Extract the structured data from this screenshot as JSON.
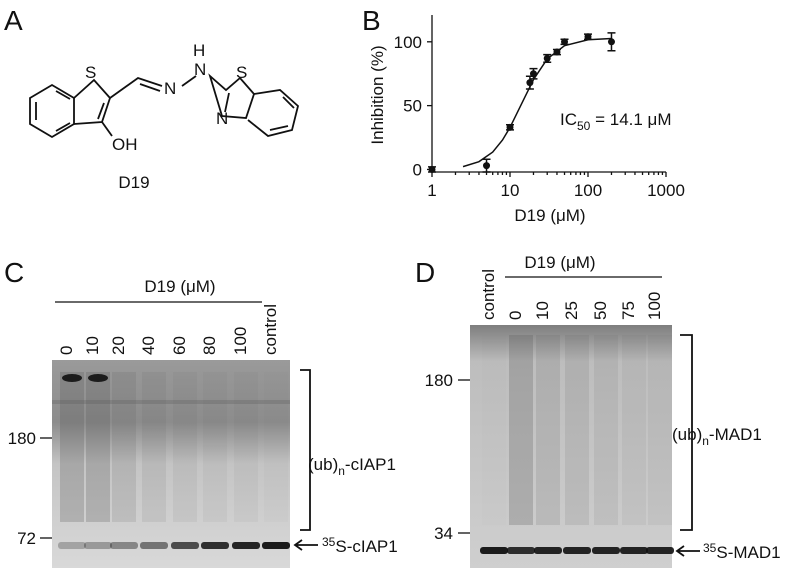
{
  "panels": {
    "a": "A",
    "b": "B",
    "c": "C",
    "d": "D"
  },
  "structure": {
    "atoms": [
      "S",
      "N",
      "N",
      "H",
      "S",
      "N",
      "OH"
    ],
    "name": "D19"
  },
  "chart_data": {
    "type": "scatter",
    "xscale": "log",
    "xlabel": "D19 (μM)",
    "ylabel": "Inhibition (%)",
    "annotation": [
      "IC",
      "50",
      " = 14.1 μM"
    ],
    "xlim": [
      1,
      1000
    ],
    "xticks": [
      1,
      10,
      100,
      1000
    ],
    "ylim": [
      -2,
      121
    ],
    "yticks": [
      0,
      50,
      100
    ],
    "color": "#111111",
    "series": [
      {
        "x": [
          1,
          5,
          10,
          18,
          20,
          30,
          40,
          50,
          100,
          200
        ],
        "values": [
          0,
          3,
          33,
          68,
          75,
          87,
          92,
          100,
          104,
          100
        ],
        "errors": [
          2,
          5,
          2,
          5,
          4,
          3,
          2,
          2,
          2,
          7
        ]
      },
      {
        "x": [
          2.5,
          4,
          6,
          8,
          10,
          14.1,
          20,
          30,
          50,
          100,
          200
        ],
        "values": [
          2.2,
          6.1,
          13.6,
          23,
          32.9,
          51.5,
          70.4,
          86.6,
          97,
          101.6,
          102.6
        ]
      }
    ]
  },
  "gel_c": {
    "title": "D19 (μM)",
    "lanes": [
      "0",
      "10",
      "20",
      "40",
      "60",
      "80",
      "100",
      "control"
    ],
    "markers": [
      "180",
      "72"
    ],
    "ub_label": [
      "(ub)",
      "n",
      "-cIAP1"
    ],
    "substrate": [
      "35",
      "S-cIAP1"
    ]
  },
  "gel_d": {
    "title": "D19 (μM)",
    "lanes": [
      "control",
      "0",
      "10",
      "25",
      "50",
      "75",
      "100"
    ],
    "markers": [
      "180",
      "34"
    ],
    "ub_label": [
      "(ub)",
      "n",
      "-MAD1"
    ],
    "substrate": [
      "35",
      "S-MAD1"
    ]
  }
}
